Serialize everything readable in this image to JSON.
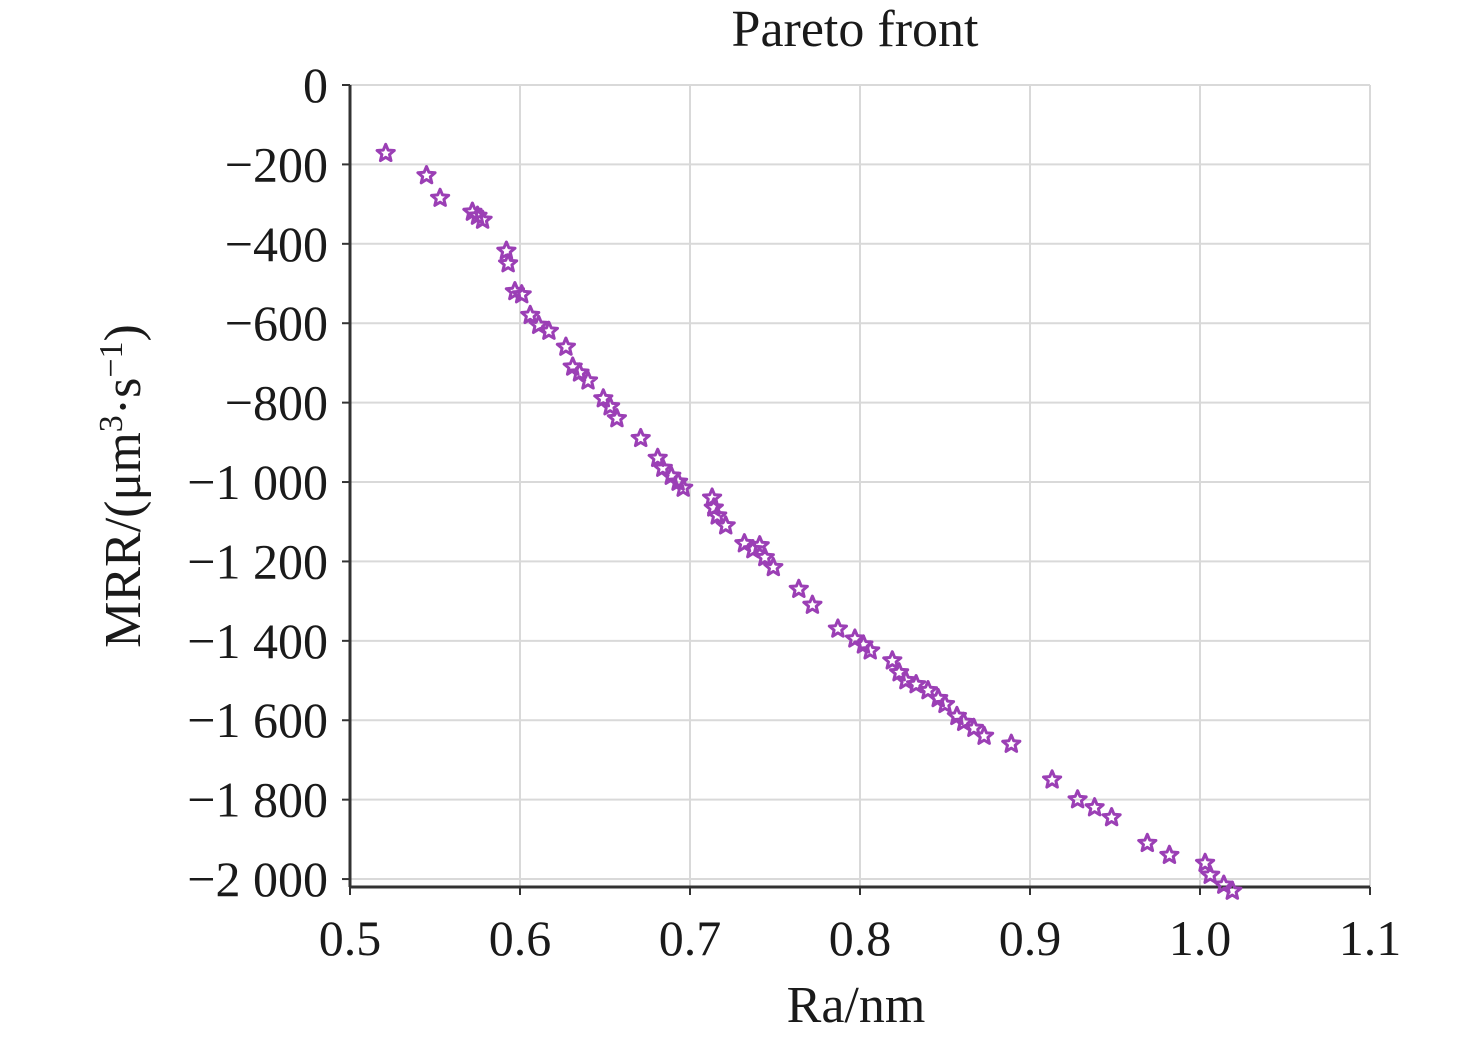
{
  "chart_data": {
    "type": "scatter",
    "title": "Pareto front",
    "xlabel": "Ra/nm",
    "ylabel_main": "MRR/(μm",
    "ylabel_sup1": "3",
    "ylabel_mid": "·s",
    "ylabel_sup2": "−1",
    "ylabel_end": ")",
    "xlim": [
      0.5,
      1.1
    ],
    "ylim": [
      -2020,
      0
    ],
    "xticks": [
      0.5,
      0.6,
      0.7,
      0.8,
      0.9,
      1.0,
      1.1
    ],
    "xtick_labels": [
      "0.5",
      "0.6",
      "0.7",
      "0.8",
      "0.9",
      "1.0",
      "1.1"
    ],
    "yticks": [
      0,
      -200,
      -400,
      -600,
      -800,
      -1000,
      -1200,
      -1400,
      -1600,
      -1800,
      -2000
    ],
    "ytick_labels": [
      "0",
      "−200",
      "−400",
      "−600",
      "−800",
      "−1 000",
      "−1 200",
      "−1 400",
      "−1 600",
      "−1 800",
      "−2 000"
    ],
    "grid": true,
    "marker": "star",
    "color": "#9b3fb5",
    "series": [
      {
        "x": [
          0.521,
          0.545,
          0.553,
          0.572,
          0.575,
          0.578,
          0.592,
          0.593,
          0.597,
          0.601,
          0.606,
          0.611,
          0.617,
          0.627,
          0.631,
          0.635,
          0.64,
          0.649,
          0.653,
          0.657,
          0.671,
          0.681,
          0.684,
          0.689,
          0.693,
          0.696,
          0.713,
          0.714,
          0.716,
          0.721,
          0.732,
          0.737,
          0.741,
          0.744,
          0.749,
          0.764,
          0.772,
          0.787,
          0.797,
          0.802,
          0.806,
          0.819,
          0.823,
          0.827,
          0.833,
          0.84,
          0.846,
          0.85,
          0.857,
          0.861,
          0.867,
          0.873,
          0.889,
          0.913,
          0.928,
          0.938,
          0.948,
          0.969,
          0.982,
          1.003,
          1.006,
          1.014,
          1.019
        ],
        "y": [
          -172,
          -228,
          -285,
          -320,
          -330,
          -340,
          -418,
          -450,
          -520,
          -528,
          -580,
          -605,
          -620,
          -660,
          -710,
          -725,
          -745,
          -790,
          -810,
          -840,
          -890,
          -940,
          -965,
          -985,
          -1000,
          -1015,
          -1040,
          -1065,
          -1085,
          -1110,
          -1155,
          -1170,
          -1160,
          -1190,
          -1215,
          -1270,
          -1310,
          -1370,
          -1395,
          -1410,
          -1425,
          -1450,
          -1480,
          -1500,
          -1510,
          -1525,
          -1545,
          -1560,
          -1590,
          -1605,
          -1620,
          -1640,
          -1660,
          -1750,
          -1800,
          -1820,
          -1845,
          -1910,
          -1940,
          -1960,
          -1990,
          -2015,
          -2030
        ]
      }
    ]
  }
}
